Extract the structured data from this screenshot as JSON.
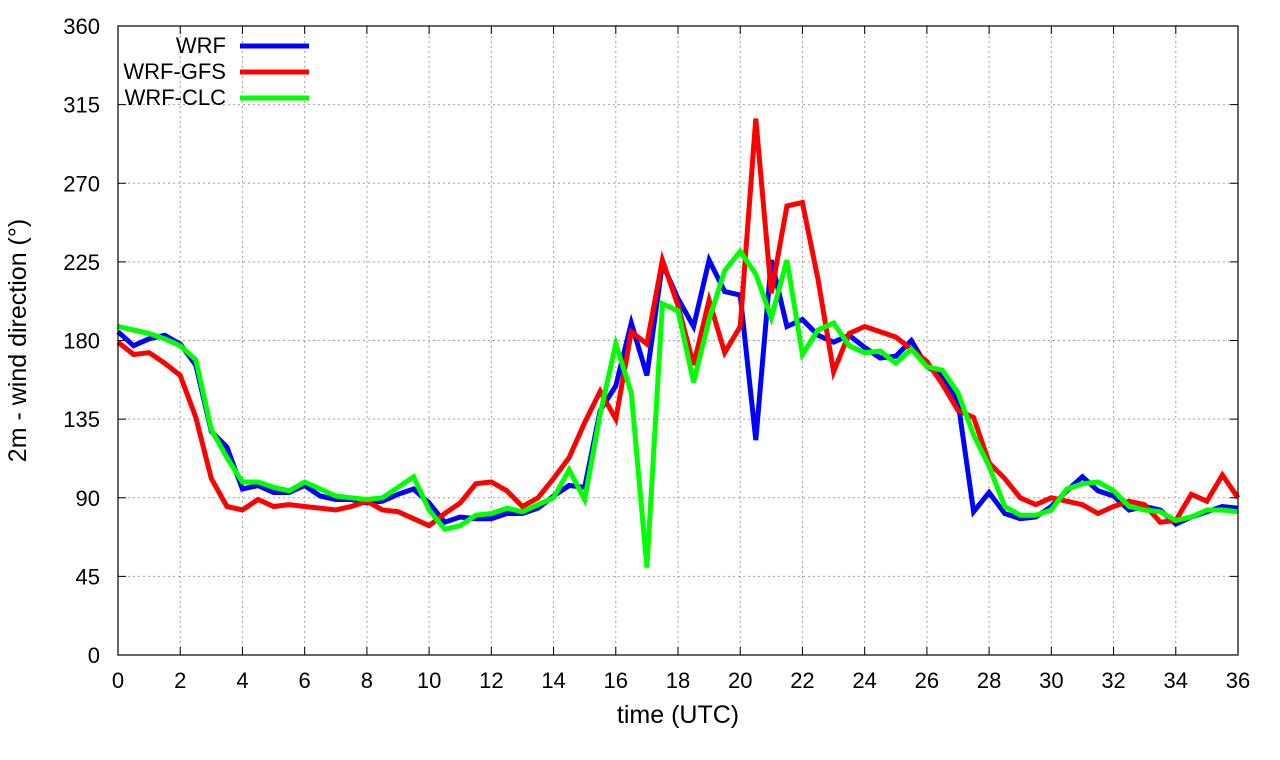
{
  "chart_data": {
    "type": "line",
    "xlabel": "time (UTC)",
    "ylabel": "2m - wind direction (°)",
    "xlim": [
      0,
      36
    ],
    "ylim": [
      0,
      360
    ],
    "xticks": [
      0,
      2,
      4,
      6,
      8,
      10,
      12,
      14,
      16,
      18,
      20,
      22,
      24,
      26,
      28,
      30,
      32,
      34,
      36
    ],
    "yticks": [
      0,
      45,
      90,
      135,
      180,
      225,
      270,
      315,
      360
    ],
    "grid": true,
    "legend_position": "top-left",
    "series": [
      {
        "name": "WRF",
        "color": "#0000ff",
        "points": [
          [
            0,
            185
          ],
          [
            0.5,
            177
          ],
          [
            1,
            181
          ],
          [
            1.5,
            183
          ],
          [
            2,
            178
          ],
          [
            2.5,
            166
          ],
          [
            3,
            128
          ],
          [
            3.5,
            119
          ],
          [
            4,
            95
          ],
          [
            4.5,
            97
          ],
          [
            5,
            93
          ],
          [
            5.5,
            93
          ],
          [
            6,
            97
          ],
          [
            6.5,
            91
          ],
          [
            7,
            89
          ],
          [
            7.5,
            89
          ],
          [
            8,
            87
          ],
          [
            8.5,
            88
          ],
          [
            9,
            92
          ],
          [
            9.5,
            95
          ],
          [
            10,
            87
          ],
          [
            10.5,
            76
          ],
          [
            11,
            79
          ],
          [
            11.5,
            78
          ],
          [
            12,
            78
          ],
          [
            12.5,
            81
          ],
          [
            13,
            81
          ],
          [
            13.5,
            84
          ],
          [
            14,
            91
          ],
          [
            14.5,
            97
          ],
          [
            15,
            96
          ],
          [
            15.5,
            140
          ],
          [
            16,
            154
          ],
          [
            16.5,
            190
          ],
          [
            17,
            160
          ],
          [
            17.5,
            224
          ],
          [
            18,
            204
          ],
          [
            18.5,
            188
          ],
          [
            19,
            226
          ],
          [
            19.5,
            208
          ],
          [
            20,
            206
          ],
          [
            20.5,
            123
          ],
          [
            21,
            226
          ],
          [
            21.5,
            188
          ],
          [
            22,
            192
          ],
          [
            22.5,
            183
          ],
          [
            23,
            179
          ],
          [
            23.5,
            183
          ],
          [
            24,
            176
          ],
          [
            24.5,
            170
          ],
          [
            25,
            171
          ],
          [
            25.5,
            180
          ],
          [
            26,
            165
          ],
          [
            26.5,
            160
          ],
          [
            27,
            145
          ],
          [
            27.5,
            82
          ],
          [
            28,
            93
          ],
          [
            28.5,
            81
          ],
          [
            29,
            78
          ],
          [
            29.5,
            79
          ],
          [
            30,
            85
          ],
          [
            30.5,
            94
          ],
          [
            31,
            102
          ],
          [
            31.5,
            94
          ],
          [
            32,
            91
          ],
          [
            32.5,
            83
          ],
          [
            33,
            85
          ],
          [
            33.5,
            83
          ],
          [
            34,
            75
          ],
          [
            34.5,
            79
          ],
          [
            35,
            82
          ],
          [
            35.5,
            85
          ],
          [
            36,
            84
          ]
        ]
      },
      {
        "name": "WRF-GFS",
        "color": "#ff0000",
        "points": [
          [
            0,
            179
          ],
          [
            0.5,
            172
          ],
          [
            1,
            173
          ],
          [
            1.5,
            167
          ],
          [
            2,
            160
          ],
          [
            2.5,
            136
          ],
          [
            3,
            101
          ],
          [
            3.5,
            85
          ],
          [
            4,
            83
          ],
          [
            4.5,
            89
          ],
          [
            5,
            85
          ],
          [
            5.5,
            86
          ],
          [
            6,
            85
          ],
          [
            6.5,
            84
          ],
          [
            7,
            83
          ],
          [
            7.5,
            85
          ],
          [
            8,
            88
          ],
          [
            8.5,
            83
          ],
          [
            9,
            82
          ],
          [
            9.5,
            78
          ],
          [
            10,
            74
          ],
          [
            10.5,
            81
          ],
          [
            11,
            87
          ],
          [
            11.5,
            98
          ],
          [
            12,
            99
          ],
          [
            12.5,
            94
          ],
          [
            13,
            85
          ],
          [
            13.5,
            90
          ],
          [
            14,
            101
          ],
          [
            14.5,
            113
          ],
          [
            15,
            133
          ],
          [
            15.5,
            151
          ],
          [
            16,
            135
          ],
          [
            16.5,
            185
          ],
          [
            17,
            178
          ],
          [
            17.5,
            226
          ],
          [
            18,
            200
          ],
          [
            18.5,
            166
          ],
          [
            19,
            203
          ],
          [
            19.5,
            173
          ],
          [
            20,
            188
          ],
          [
            20.5,
            307
          ],
          [
            21,
            207
          ],
          [
            21.5,
            257
          ],
          [
            22,
            259
          ],
          [
            22.5,
            215
          ],
          [
            23,
            162
          ],
          [
            23.5,
            184
          ],
          [
            24,
            188
          ],
          [
            24.5,
            185
          ],
          [
            25,
            182
          ],
          [
            25.5,
            175
          ],
          [
            26,
            168
          ],
          [
            26.5,
            155
          ],
          [
            27,
            140
          ],
          [
            27.5,
            136
          ],
          [
            28,
            110
          ],
          [
            28.5,
            101
          ],
          [
            29,
            90
          ],
          [
            29.5,
            86
          ],
          [
            30,
            90
          ],
          [
            30.5,
            88
          ],
          [
            31,
            86
          ],
          [
            31.5,
            81
          ],
          [
            32,
            85
          ],
          [
            32.5,
            88
          ],
          [
            33,
            86
          ],
          [
            33.5,
            76
          ],
          [
            34,
            77
          ],
          [
            34.5,
            92
          ],
          [
            35,
            88
          ],
          [
            35.5,
            103
          ],
          [
            36,
            90
          ]
        ]
      },
      {
        "name": "WRF-CLC",
        "color": "#00ff00",
        "points": [
          [
            0,
            188
          ],
          [
            0.5,
            186
          ],
          [
            1,
            184
          ],
          [
            1.5,
            181
          ],
          [
            2,
            177
          ],
          [
            2.5,
            169
          ],
          [
            3,
            129
          ],
          [
            3.5,
            113
          ],
          [
            4,
            99
          ],
          [
            4.5,
            99
          ],
          [
            5,
            96
          ],
          [
            5.5,
            94
          ],
          [
            6,
            99
          ],
          [
            6.5,
            95
          ],
          [
            7,
            91
          ],
          [
            7.5,
            90
          ],
          [
            8,
            89
          ],
          [
            8.5,
            90
          ],
          [
            9,
            96
          ],
          [
            9.5,
            102
          ],
          [
            10,
            83
          ],
          [
            10.5,
            72
          ],
          [
            11,
            74
          ],
          [
            11.5,
            80
          ],
          [
            12,
            81
          ],
          [
            12.5,
            84
          ],
          [
            13,
            82
          ],
          [
            13.5,
            86
          ],
          [
            14,
            90
          ],
          [
            14.5,
            106
          ],
          [
            15,
            89
          ],
          [
            15.5,
            138
          ],
          [
            16,
            178
          ],
          [
            16.5,
            150
          ],
          [
            17,
            50
          ],
          [
            17.5,
            201
          ],
          [
            18,
            197
          ],
          [
            18.5,
            156
          ],
          [
            19,
            192
          ],
          [
            19.5,
            220
          ],
          [
            20,
            231
          ],
          [
            20.5,
            218
          ],
          [
            21,
            193
          ],
          [
            21.5,
            226
          ],
          [
            22,
            172
          ],
          [
            22.5,
            186
          ],
          [
            23,
            190
          ],
          [
            23.5,
            177
          ],
          [
            24,
            173
          ],
          [
            24.5,
            174
          ],
          [
            25,
            167
          ],
          [
            25.5,
            175
          ],
          [
            26,
            165
          ],
          [
            26.5,
            163
          ],
          [
            27,
            150
          ],
          [
            27.5,
            126
          ],
          [
            28,
            108
          ],
          [
            28.5,
            85
          ],
          [
            29,
            80
          ],
          [
            29.5,
            80
          ],
          [
            30,
            83
          ],
          [
            30.5,
            95
          ],
          [
            31,
            98
          ],
          [
            31.5,
            99
          ],
          [
            32,
            94
          ],
          [
            32.5,
            85
          ],
          [
            33,
            83
          ],
          [
            33.5,
            82
          ],
          [
            34,
            77
          ],
          [
            34.5,
            79
          ],
          [
            35,
            83
          ],
          [
            35.5,
            83
          ],
          [
            36,
            82
          ]
        ]
      }
    ]
  }
}
